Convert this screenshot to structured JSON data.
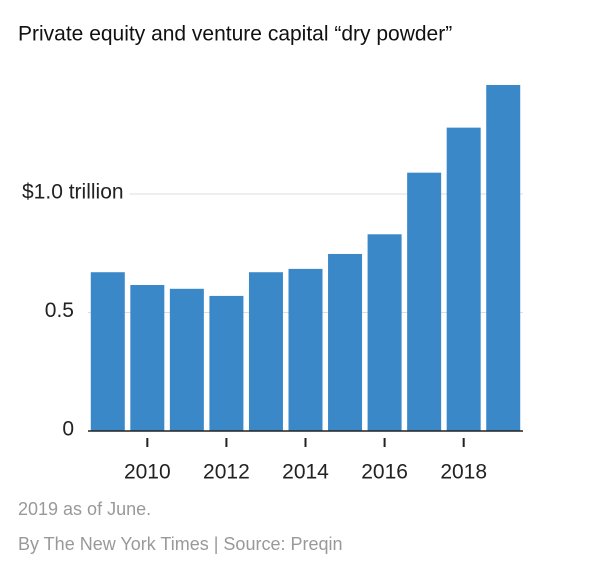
{
  "chart_data": {
    "type": "bar",
    "title": "Private equity and venture capital “dry powder”",
    "categories": [
      null,
      "2010",
      null,
      "2012",
      null,
      "2014",
      null,
      "2016",
      null,
      "2018",
      null
    ],
    "values": [
      0.67,
      0.616,
      0.6,
      0.57,
      0.67,
      0.684,
      0.747,
      0.83,
      1.09,
      1.28,
      1.46
    ],
    "color": "#3b88c9",
    "ylim": [
      0,
      1.5
    ],
    "yticks": [
      0,
      0.5,
      {
        "value": 1.0,
        "label": "$1.0 trillion"
      }
    ],
    "grid": true,
    "notes": [
      "2019 as of June.",
      "By The New York Times | Source: Preqin"
    ]
  }
}
